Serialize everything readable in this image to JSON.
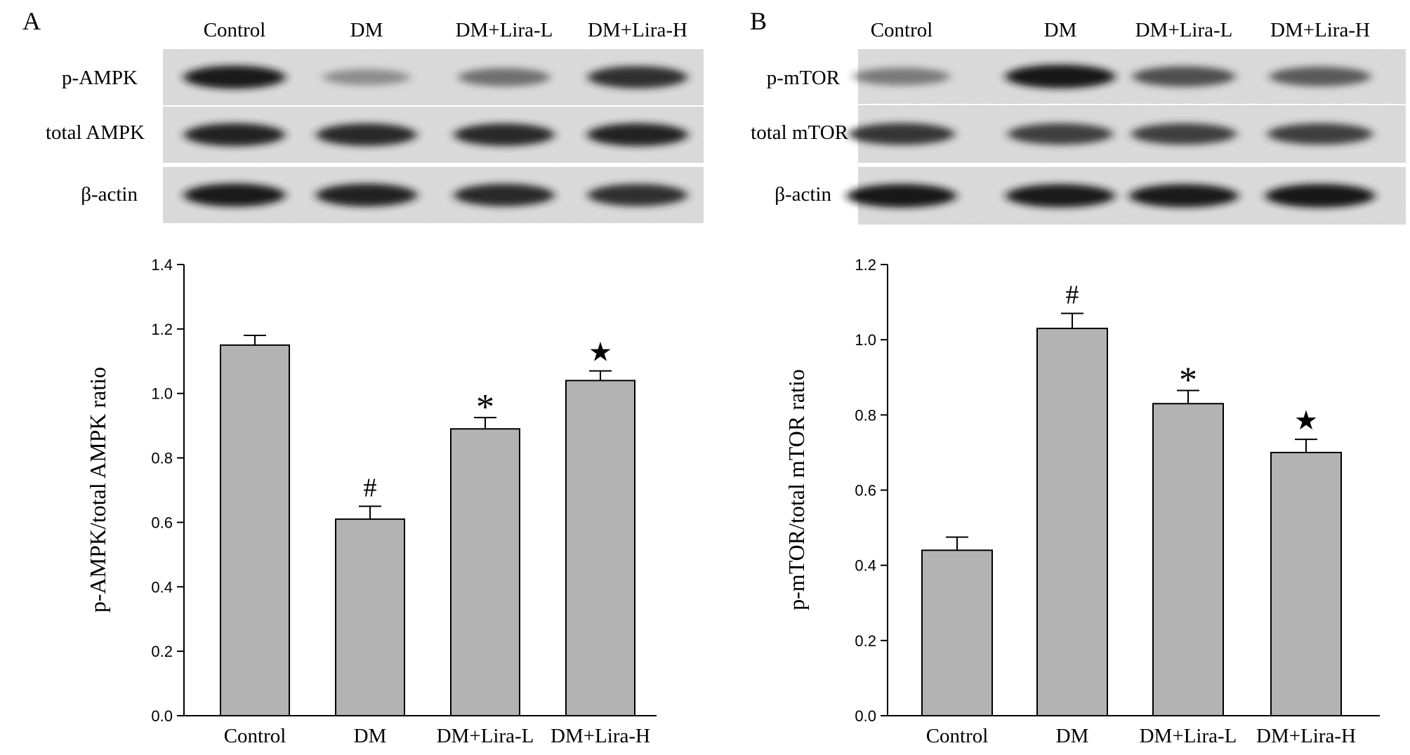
{
  "panels": [
    {
      "letter": "A",
      "blot": {
        "lanes": [
          "Control",
          "DM",
          "DM+Lira-L",
          "DM+Lira-H"
        ],
        "rows": [
          {
            "label": "p-AMPK",
            "intensity": [
              0.95,
              0.45,
              0.6,
              0.88
            ]
          },
          {
            "label": "total AMPK",
            "intensity": [
              0.92,
              0.9,
              0.9,
              0.92
            ]
          },
          {
            "label": "β-actin",
            "intensity": [
              0.95,
              0.93,
              0.9,
              0.88
            ]
          }
        ]
      },
      "chart_data": {
        "type": "bar",
        "categories": [
          "Control",
          "DM",
          "DM+Lira-L",
          "DM+Lira-H"
        ],
        "values": [
          1.15,
          0.61,
          0.89,
          1.04
        ],
        "errors": [
          0.03,
          0.04,
          0.035,
          0.03
        ],
        "markers": [
          "",
          "#",
          "*",
          "★"
        ],
        "ylabel": "p-AMPK/total AMPK ratio",
        "ylim": [
          0,
          1.4
        ],
        "yticks": [
          "0.0",
          "0.2",
          "0.4",
          "0.6",
          "0.8",
          "1.0",
          "1.2",
          "1.4"
        ],
        "bar_color": "#b3b3b3",
        "grid": false
      }
    },
    {
      "letter": "B",
      "blot": {
        "lanes": [
          "Control",
          "DM",
          "DM+Lira-L",
          "DM+Lira-H"
        ],
        "rows": [
          {
            "label": "p-mTOR",
            "intensity": [
              0.55,
              0.98,
              0.75,
              0.7
            ]
          },
          {
            "label": "total mTOR",
            "intensity": [
              0.85,
              0.82,
              0.82,
              0.82
            ]
          },
          {
            "label": "β-actin",
            "intensity": [
              0.97,
              0.95,
              0.95,
              0.98
            ]
          }
        ]
      },
      "chart_data": {
        "type": "bar",
        "categories": [
          "Control",
          "DM",
          "DM+Lira-L",
          "DM+Lira-H"
        ],
        "values": [
          0.44,
          1.03,
          0.83,
          0.7
        ],
        "errors": [
          0.035,
          0.04,
          0.035,
          0.035
        ],
        "markers": [
          "",
          "#",
          "*",
          "★"
        ],
        "ylabel": "p-mTOR/total mTOR ratio",
        "ylim": [
          0,
          1.2
        ],
        "yticks": [
          "0.0",
          "0.2",
          "0.4",
          "0.6",
          "0.8",
          "1.0",
          "1.2"
        ],
        "bar_color": "#b3b3b3",
        "grid": false
      }
    }
  ]
}
